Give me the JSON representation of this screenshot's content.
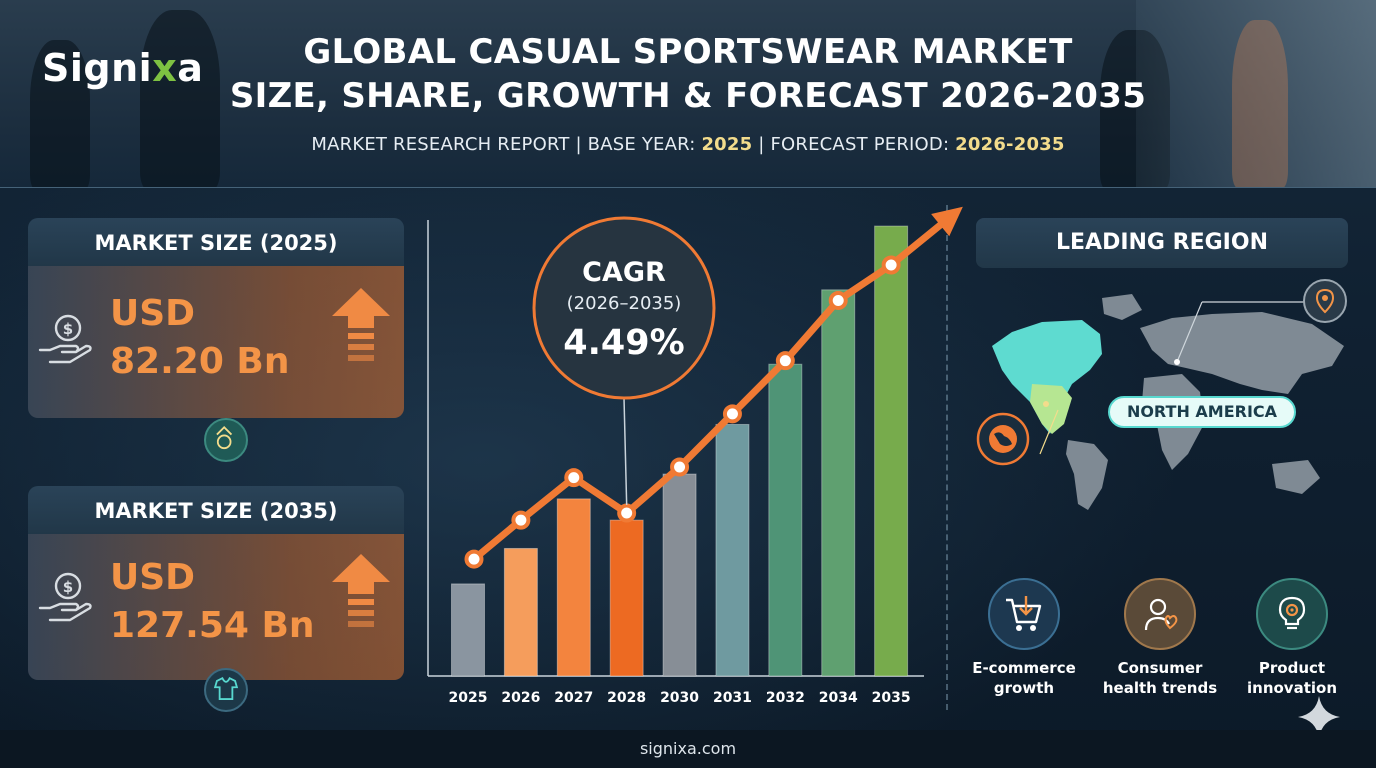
{
  "brand": {
    "name_main": "Signi",
    "name_x": "x",
    "name_end": "a"
  },
  "header": {
    "title_line1": "GLOBAL CASUAL SPORTSWEAR MARKET",
    "title_line2": "SIZE, SHARE, GROWTH & FORECAST 2026-2035",
    "subtitle_prefix": "MARKET RESEARCH REPORT | BASE YEAR: ",
    "base_year": "2025",
    "subtitle_mid": " | FORECAST PERIOD: ",
    "forecast_period": "2026-2035"
  },
  "market_2025": {
    "heading": "MARKET SIZE (2025)",
    "currency": "USD",
    "value": "82.20 Bn"
  },
  "market_2035": {
    "heading": "MARKET SIZE (2035)",
    "currency": "USD",
    "value": "127.54 Bn"
  },
  "cagr": {
    "label": "CAGR",
    "period": "(2026–2035)",
    "value": "4.49%"
  },
  "region": {
    "heading": "LEADING REGION",
    "name": "NORTH AMERICA"
  },
  "drivers": [
    {
      "label_line1": "E-commerce",
      "label_line2": "growth",
      "icon": "shopping-cart-icon"
    },
    {
      "label_line1": "Consumer",
      "label_line2": "health trends",
      "icon": "health-person-icon"
    },
    {
      "label_line1": "Product",
      "label_line2": "innovation",
      "icon": "lightbulb-gear-icon"
    }
  ],
  "footer": {
    "site": "signixa.com"
  },
  "colors": {
    "accent_orange": "#f39447",
    "trend_line": "#f07a34",
    "region_highlight": "#58d8cf",
    "brand_green": "#7ec142"
  },
  "chart_data": {
    "type": "bar",
    "categories": [
      "2025",
      "2026",
      "2027",
      "2028",
      "2030",
      "2031",
      "2032",
      "2034",
      "2035"
    ],
    "values": [
      26,
      36,
      50,
      44,
      57,
      71,
      88,
      109,
      127
    ],
    "trend_values": [
      33,
      44,
      56,
      46,
      59,
      74,
      89,
      106,
      116
    ],
    "bar_colors": [
      "#8a95a0",
      "#f59d5c",
      "#f3843e",
      "#ed6a22",
      "#878e96",
      "#6f9aa0",
      "#4f9476",
      "#5fa070",
      "#77ab4c"
    ],
    "title": "",
    "xlabel": "",
    "ylabel": "",
    "ylim": [
      0,
      140
    ],
    "grid": false
  }
}
